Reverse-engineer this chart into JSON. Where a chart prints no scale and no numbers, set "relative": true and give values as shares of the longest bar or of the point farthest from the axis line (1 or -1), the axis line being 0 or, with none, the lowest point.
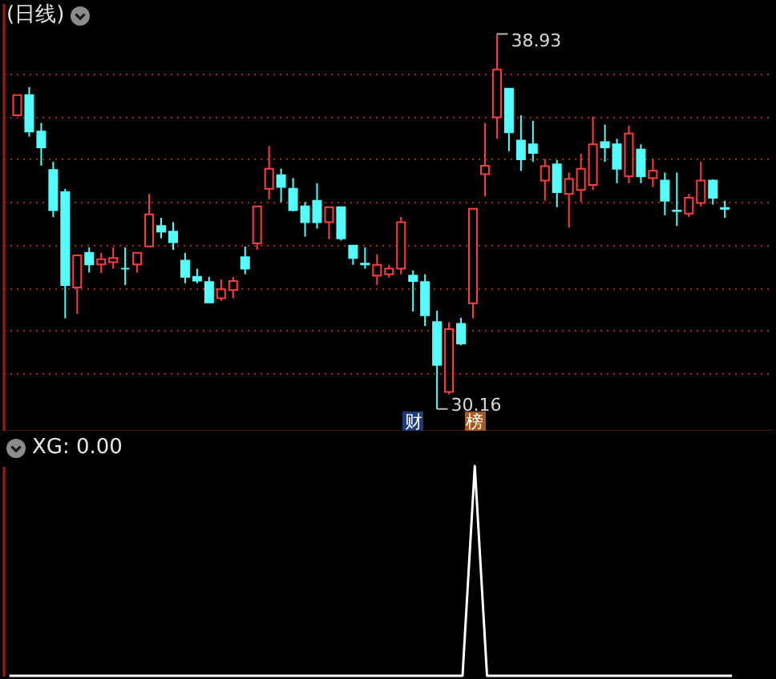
{
  "chart_data": [
    {
      "type": "candlestick",
      "title": "(日线)",
      "categories": [
        null,
        null,
        null,
        null,
        null,
        null,
        null,
        null,
        null,
        null,
        null,
        null,
        null,
        null,
        null,
        null,
        null,
        null,
        null,
        null,
        null,
        null,
        null,
        null,
        null,
        null,
        null,
        null,
        null,
        null,
        null,
        null,
        null,
        null,
        null,
        null,
        null,
        null,
        null,
        null,
        null,
        null,
        null,
        null,
        null,
        null,
        null,
        null,
        null,
        null,
        null,
        null,
        null,
        null,
        null,
        null,
        null,
        null,
        null,
        null
      ],
      "ohlc": [
        [
          37.03,
          37.5,
          37.03,
          37.5
        ],
        [
          37.5,
          37.69,
          36.53,
          36.65
        ],
        [
          36.65,
          36.85,
          35.85,
          36.28
        ],
        [
          35.75,
          35.94,
          34.65,
          34.81
        ],
        [
          35.23,
          35.31,
          32.28,
          33.06
        ],
        [
          33.0,
          33.78,
          32.38,
          33.75
        ],
        [
          33.81,
          33.94,
          33.35,
          33.54
        ],
        [
          33.54,
          33.81,
          33.34,
          33.66
        ],
        [
          33.59,
          33.94,
          33.44,
          33.69
        ],
        [
          33.44,
          33.94,
          33.06,
          33.44
        ],
        [
          33.54,
          33.81,
          33.35,
          33.81
        ],
        [
          33.96,
          35.19,
          33.96,
          34.71
        ],
        [
          34.44,
          34.63,
          34.15,
          34.31
        ],
        [
          34.31,
          34.53,
          33.88,
          34.06
        ],
        [
          33.63,
          33.81,
          33.1,
          33.25
        ],
        [
          33.25,
          33.44,
          33.1,
          33.16
        ],
        [
          33.13,
          33.25,
          32.65,
          32.65
        ],
        [
          32.75,
          33.19,
          32.69,
          32.96
        ],
        [
          32.94,
          33.25,
          32.75,
          33.15
        ],
        [
          33.71,
          33.96,
          33.31,
          33.44
        ],
        [
          34.03,
          34.9,
          33.88,
          34.9
        ],
        [
          35.31,
          36.31,
          35.06,
          35.78
        ],
        [
          35.63,
          35.78,
          35.0,
          35.35
        ],
        [
          35.31,
          35.56,
          34.78,
          34.81
        ],
        [
          34.9,
          35.0,
          34.19,
          34.53
        ],
        [
          35.03,
          35.44,
          34.38,
          34.53
        ],
        [
          34.53,
          34.88,
          34.13,
          34.88
        ],
        [
          34.88,
          34.88,
          34.1,
          34.15
        ],
        [
          33.98,
          33.98,
          33.53,
          33.69
        ],
        [
          33.56,
          33.94,
          33.44,
          33.54
        ],
        [
          33.28,
          33.78,
          33.06,
          33.53
        ],
        [
          33.31,
          33.53,
          33.23,
          33.44
        ],
        [
          33.44,
          34.65,
          33.31,
          34.53
        ],
        [
          33.28,
          33.4,
          32.44,
          33.15
        ],
        [
          33.13,
          33.31,
          32.1,
          32.35
        ],
        [
          32.19,
          32.46,
          30.16,
          31.19
        ],
        [
          30.56,
          32.19,
          30.5,
          32.03
        ],
        [
          32.15,
          32.29,
          31.65,
          31.69
        ],
        [
          32.63,
          34.84,
          32.28,
          34.84
        ],
        [
          35.65,
          36.85,
          35.13,
          35.85
        ],
        [
          36.98,
          38.93,
          36.48,
          38.1
        ],
        [
          37.65,
          37.65,
          36.19,
          36.63
        ],
        [
          36.44,
          37.03,
          35.73,
          36.0
        ],
        [
          36.35,
          36.9,
          35.94,
          36.15
        ],
        [
          35.5,
          36.0,
          35.03,
          35.84
        ],
        [
          35.88,
          35.98,
          34.88,
          35.23
        ],
        [
          35.19,
          35.69,
          34.4,
          35.54
        ],
        [
          35.28,
          36.13,
          35.0,
          35.78
        ],
        [
          35.4,
          37.0,
          35.28,
          36.35
        ],
        [
          36.4,
          36.81,
          35.94,
          36.28
        ],
        [
          36.35,
          36.48,
          35.44,
          35.78
        ],
        [
          35.6,
          36.79,
          35.44,
          36.6
        ],
        [
          36.23,
          36.35,
          35.44,
          35.6
        ],
        [
          35.56,
          36.0,
          35.35,
          35.73
        ],
        [
          35.5,
          35.69,
          34.69,
          35.03
        ],
        [
          34.8,
          35.69,
          34.44,
          34.79
        ],
        [
          34.73,
          35.19,
          34.65,
          35.1
        ],
        [
          34.98,
          35.94,
          34.9,
          35.5
        ],
        [
          35.5,
          35.53,
          34.94,
          35.1
        ],
        [
          34.86,
          35.03,
          34.63,
          34.84
        ]
      ],
      "colors": [
        "#ff3c3c",
        "#54fcfc",
        "#54fcfc",
        "#54fcfc",
        "#54fcfc",
        "#ff3c3c",
        "#54fcfc",
        "#ff3c3c",
        "#ff3c3c",
        "#54fcfc",
        "#ff3c3c",
        "#ff3c3c",
        "#54fcfc",
        "#54fcfc",
        "#54fcfc",
        "#54fcfc",
        "#54fcfc",
        "#ff3c3c",
        "#ff3c3c",
        "#54fcfc",
        "#ff3c3c",
        "#ff3c3c",
        "#54fcfc",
        "#54fcfc",
        "#54fcfc",
        "#54fcfc",
        "#ff3c3c",
        "#54fcfc",
        "#54fcfc",
        "#54fcfc",
        "#ff3c3c",
        "#ff3c3c",
        "#ff3c3c",
        "#54fcfc",
        "#54fcfc",
        "#54fcfc",
        "#ff3c3c",
        "#54fcfc",
        "#ff3c3c",
        "#ff3c3c",
        "#ff3c3c",
        "#54fcfc",
        "#54fcfc",
        "#54fcfc",
        "#ff3c3c",
        "#54fcfc",
        "#ff3c3c",
        "#ff3c3c",
        "#ff3c3c",
        "#54fcfc",
        "#54fcfc",
        "#ff3c3c",
        "#54fcfc",
        "#ff3c3c",
        "#54fcfc",
        "#54fcfc",
        "#ff3c3c",
        "#ff3c3c",
        "#54fcfc",
        "#54fcfc"
      ],
      "ylim": [
        29.65,
        39.65
      ],
      "yticks": [
        {
          "value": 31,
          "label": null
        },
        {
          "value": 32,
          "label": null
        },
        {
          "value": 33,
          "label": null
        },
        {
          "value": 34,
          "label": null
        },
        {
          "value": 35,
          "label": null
        },
        {
          "value": 36,
          "label": null
        },
        {
          "value": 37,
          "label": null
        },
        {
          "value": 38,
          "label": null
        }
      ],
      "grid": "y",
      "annotations": [
        "38.93",
        "30.16",
        "财",
        "榜"
      ]
    },
    {
      "type": "line",
      "title": "XG: 0.00",
      "categories": [
        null,
        null,
        null,
        null,
        null,
        null,
        null,
        null,
        null,
        null,
        null,
        null,
        null,
        null,
        null,
        null,
        null,
        null,
        null,
        null,
        null,
        null,
        null,
        null,
        null,
        null,
        null,
        null,
        null,
        null,
        null,
        null,
        null,
        null,
        null,
        null,
        null,
        null,
        null,
        null,
        null,
        null,
        null,
        null,
        null,
        null,
        null,
        null,
        null,
        null,
        null,
        null,
        null,
        null,
        null,
        null,
        null,
        null,
        null,
        null
      ],
      "values": [
        0,
        0,
        0,
        0,
        0,
        0,
        0,
        0,
        0,
        0,
        0,
        0,
        0,
        0,
        0,
        0,
        0,
        0,
        0,
        0,
        0,
        0,
        0,
        0,
        0,
        0,
        0,
        0,
        0,
        0,
        0,
        0,
        0,
        0,
        0,
        0,
        0,
        0,
        1,
        0,
        0,
        0,
        0,
        0,
        0,
        0,
        0,
        0,
        0,
        0,
        0,
        0,
        0,
        0,
        0,
        0,
        0,
        0,
        0,
        0
      ],
      "color": "#ffffff",
      "relative": true
    }
  ]
}
